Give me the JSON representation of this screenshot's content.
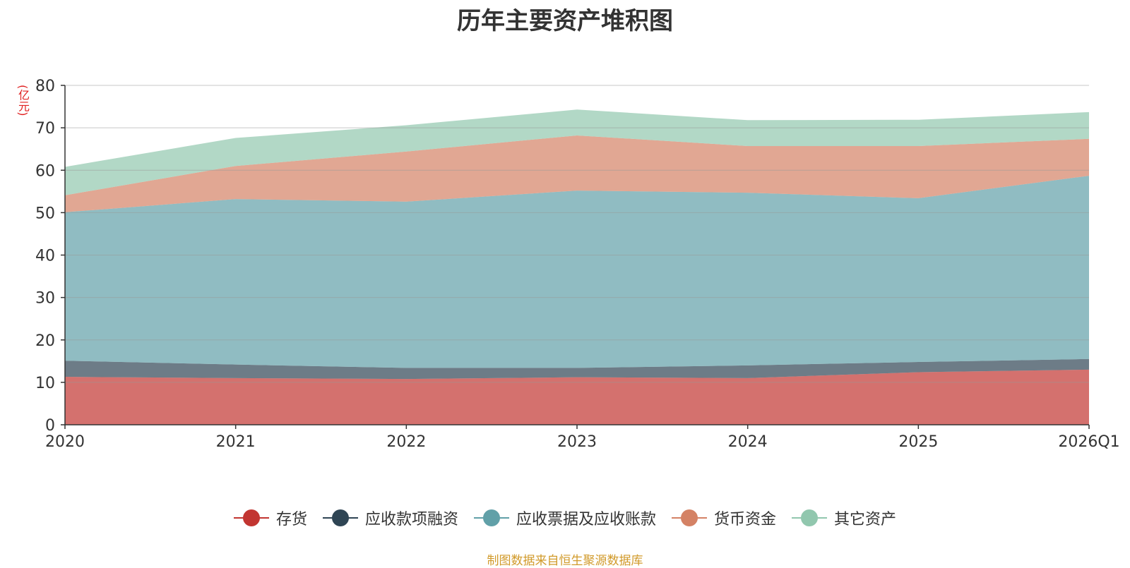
{
  "chart_data": {
    "type": "area",
    "stacked": true,
    "title": "历年主要资产堆积图",
    "ylabel": "(亿元)",
    "xlabel": "",
    "categories": [
      "2020",
      "2021",
      "2022",
      "2023",
      "2024",
      "2025",
      "2026Q1"
    ],
    "ylim": [
      0,
      80
    ],
    "yticks": [
      0,
      10,
      20,
      30,
      40,
      50,
      60,
      70,
      80
    ],
    "grid": true,
    "legend_position": "bottom",
    "series": [
      {
        "name": "存货",
        "color": "#c23531",
        "values": [
          11.3,
          11.0,
          10.8,
          11.2,
          11.0,
          12.4,
          13.0
        ]
      },
      {
        "name": "应收款项融资",
        "color": "#2f4554",
        "values": [
          3.8,
          3.2,
          2.6,
          2.2,
          3.0,
          2.4,
          2.5
        ]
      },
      {
        "name": "应收票据及应收账款",
        "color": "#61a0a8",
        "values": [
          35.0,
          39.0,
          39.2,
          41.8,
          40.7,
          38.6,
          43.2
        ]
      },
      {
        "name": "货币资金",
        "color": "#d48265",
        "values": [
          4.0,
          7.8,
          11.8,
          13.0,
          11.0,
          12.3,
          8.7
        ]
      },
      {
        "name": "其它资产",
        "color": "#91c7ae",
        "values": [
          6.7,
          6.6,
          6.2,
          6.1,
          6.1,
          6.2,
          6.3
        ]
      }
    ]
  },
  "source_text": "制图数据来自恒生聚源数据库"
}
